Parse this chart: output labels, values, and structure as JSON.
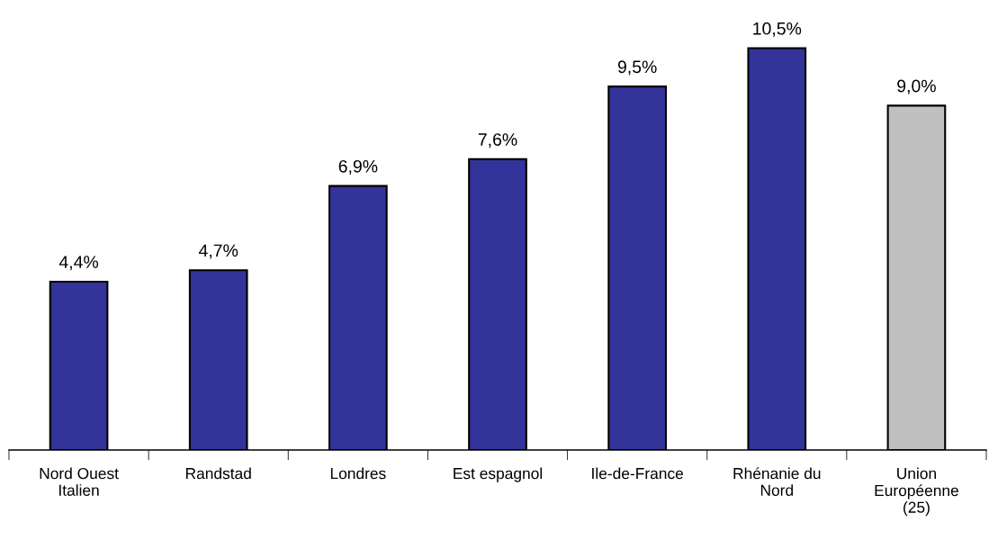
{
  "chart_data": {
    "type": "bar",
    "categories": [
      "Nord Ouest\nItalien",
      "Randstad",
      "Londres",
      "Est espagnol",
      "Ile-de-France",
      "Rhénanie du\nNord",
      "Union\nEuropéenne\n(25)"
    ],
    "values": [
      4.4,
      4.7,
      6.9,
      7.6,
      9.5,
      10.5,
      9.0
    ],
    "colors": [
      "#333399",
      "#333399",
      "#333399",
      "#333399",
      "#333399",
      "#333399",
      "#c0c0c0"
    ],
    "value_labels": [
      "4,4%",
      "4,7%",
      "6,9%",
      "7,6%",
      "9,5%",
      "10,5%",
      "9,0%"
    ]
  }
}
